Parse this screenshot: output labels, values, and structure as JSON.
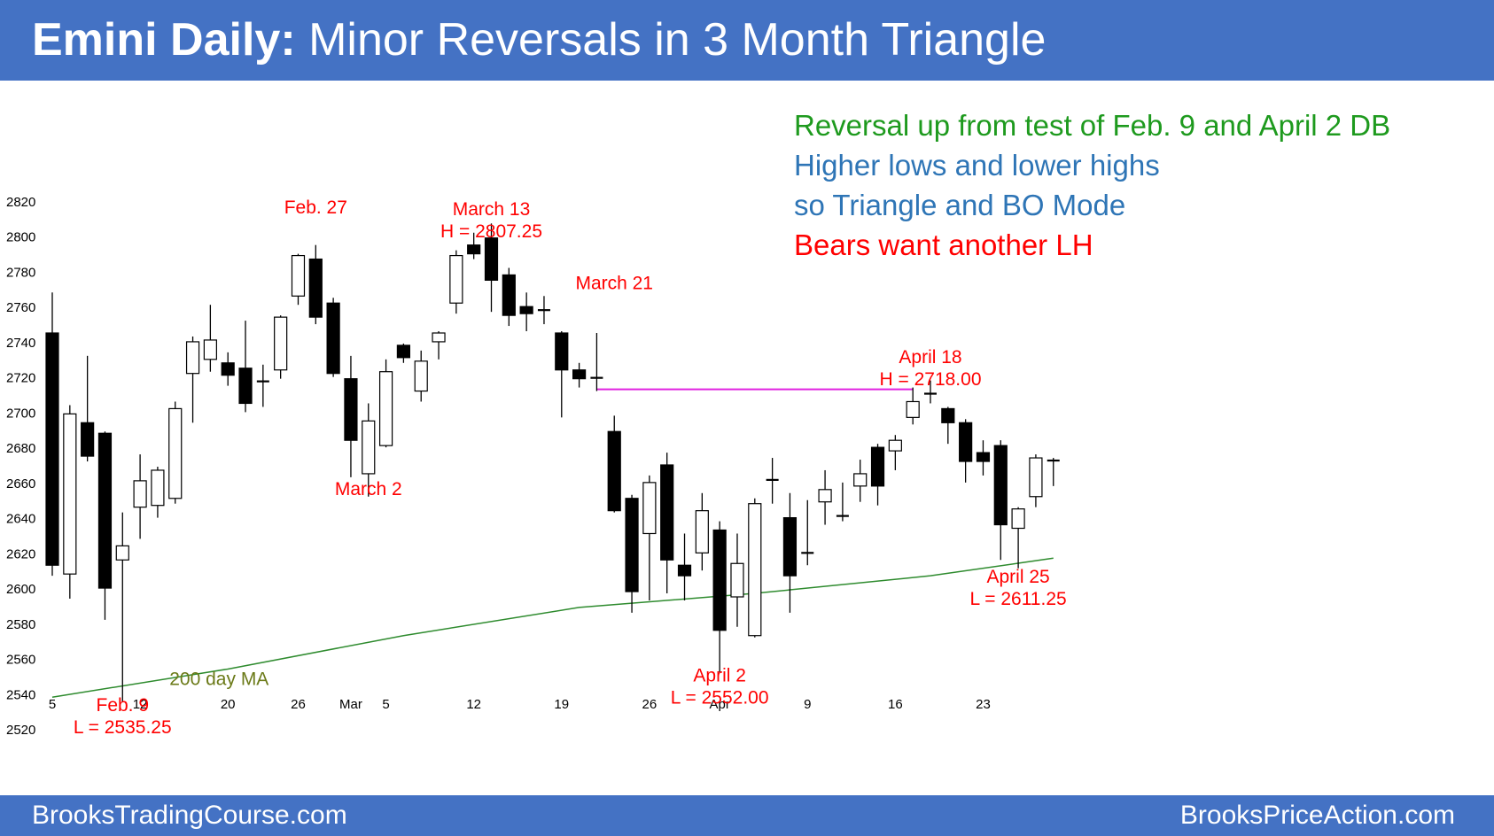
{
  "header": {
    "title_bold": "Emini Daily:",
    "title_rest": "Minor Reversals in 3 Month Triangle",
    "bg_color": "#4472c4"
  },
  "footer": {
    "left": "BrooksTradingCourse.com",
    "right": "BrooksPriceAction.com"
  },
  "notes": [
    {
      "text": "Reversal up from test of Feb. 9 and April 2 DB",
      "color": "#1e9a1e"
    },
    {
      "text": "Higher lows and lower highs",
      "color": "#2e75b6"
    },
    {
      "text": "so Triangle and BO Mode",
      "color": "#2e75b6"
    },
    {
      "text": "Bears want another LH",
      "color": "#ff0000"
    }
  ],
  "chart_data": {
    "type": "candlestick",
    "ylim": [
      2510,
      2830
    ],
    "y_ticks": [
      2520,
      2540,
      2560,
      2580,
      2600,
      2620,
      2640,
      2660,
      2680,
      2700,
      2720,
      2740,
      2760,
      2780,
      2800,
      2820
    ],
    "x_tick_labels": [
      {
        "label": "5",
        "bar": 0
      },
      {
        "label": "12",
        "bar": 5
      },
      {
        "label": "20",
        "bar": 10
      },
      {
        "label": "26",
        "bar": 14
      },
      {
        "label": "Mar",
        "bar": 17
      },
      {
        "label": "5",
        "bar": 19
      },
      {
        "label": "12",
        "bar": 24
      },
      {
        "label": "19",
        "bar": 29
      },
      {
        "label": "26",
        "bar": 34
      },
      {
        "label": "Apr",
        "bar": 38
      },
      {
        "label": "9",
        "bar": 43
      },
      {
        "label": "16",
        "bar": 48
      },
      {
        "label": "23",
        "bar": 53
      }
    ],
    "candles": [
      {
        "o": 2745,
        "h": 2768,
        "l": 2607,
        "c": 2613
      },
      {
        "o": 2608,
        "h": 2704,
        "l": 2594,
        "c": 2699
      },
      {
        "o": 2694,
        "h": 2732,
        "l": 2672,
        "c": 2675
      },
      {
        "o": 2688,
        "h": 2689,
        "l": 2582,
        "c": 2600
      },
      {
        "o": 2616,
        "h": 2643,
        "l": 2535.25,
        "c": 2624
      },
      {
        "o": 2646,
        "h": 2676,
        "l": 2628,
        "c": 2661
      },
      {
        "o": 2647,
        "h": 2669,
        "l": 2640,
        "c": 2667
      },
      {
        "o": 2651,
        "h": 2706,
        "l": 2648,
        "c": 2702
      },
      {
        "o": 2722,
        "h": 2743,
        "l": 2694,
        "c": 2740
      },
      {
        "o": 2730,
        "h": 2761,
        "l": 2723,
        "c": 2741
      },
      {
        "o": 2728,
        "h": 2734,
        "l": 2715,
        "c": 2721
      },
      {
        "o": 2725,
        "h": 2752,
        "l": 2700,
        "c": 2705
      },
      {
        "o": 2718,
        "h": 2727,
        "l": 2703,
        "c": 2717
      },
      {
        "o": 2724,
        "h": 2755,
        "l": 2719,
        "c": 2754
      },
      {
        "o": 2766,
        "h": 2790,
        "l": 2761,
        "c": 2789
      },
      {
        "o": 2787,
        "h": 2795,
        "l": 2750,
        "c": 2754
      },
      {
        "o": 2762,
        "h": 2765,
        "l": 2720,
        "c": 2722
      },
      {
        "o": 2719,
        "h": 2732,
        "l": 2663,
        "c": 2684
      },
      {
        "o": 2665,
        "h": 2705,
        "l": 2652,
        "c": 2695
      },
      {
        "o": 2681,
        "h": 2730,
        "l": 2680,
        "c": 2723
      },
      {
        "o": 2738,
        "h": 2739,
        "l": 2728,
        "c": 2731
      },
      {
        "o": 2712,
        "h": 2735,
        "l": 2706,
        "c": 2729
      },
      {
        "o": 2740,
        "h": 2746,
        "l": 2730,
        "c": 2745
      },
      {
        "o": 2762,
        "h": 2792,
        "l": 2756,
        "c": 2789
      },
      {
        "o": 2795,
        "h": 2802,
        "l": 2787,
        "c": 2790
      },
      {
        "o": 2799,
        "h": 2807.25,
        "l": 2757,
        "c": 2775
      },
      {
        "o": 2778,
        "h": 2782,
        "l": 2749,
        "c": 2755
      },
      {
        "o": 2760,
        "h": 2768,
        "l": 2746,
        "c": 2756
      },
      {
        "o": 2758,
        "h": 2766,
        "l": 2750,
        "c": 2758
      },
      {
        "o": 2745,
        "h": 2746,
        "l": 2697,
        "c": 2724
      },
      {
        "o": 2724,
        "h": 2728,
        "l": 2714,
        "c": 2719
      },
      {
        "o": 2720,
        "h": 2745,
        "l": 2712,
        "c": 2719
      },
      {
        "o": 2689,
        "h": 2698,
        "l": 2643,
        "c": 2644
      },
      {
        "o": 2651,
        "h": 2653,
        "l": 2586,
        "c": 2598
      },
      {
        "o": 2631,
        "h": 2664,
        "l": 2593,
        "c": 2660
      },
      {
        "o": 2670,
        "h": 2677,
        "l": 2597,
        "c": 2616
      },
      {
        "o": 2613,
        "h": 2631,
        "l": 2593,
        "c": 2607
      },
      {
        "o": 2620,
        "h": 2654,
        "l": 2610,
        "c": 2644
      },
      {
        "o": 2633,
        "h": 2638,
        "l": 2552,
        "c": 2576
      },
      {
        "o": 2595,
        "h": 2631,
        "l": 2578,
        "c": 2614
      },
      {
        "o": 2573,
        "h": 2651,
        "l": 2572,
        "c": 2648
      },
      {
        "o": 2662,
        "h": 2674,
        "l": 2648,
        "c": 2661
      },
      {
        "o": 2640,
        "h": 2654,
        "l": 2586,
        "c": 2607
      },
      {
        "o": 2620,
        "h": 2650,
        "l": 2613,
        "c": 2620
      },
      {
        "o": 2649,
        "h": 2667,
        "l": 2636,
        "c": 2656
      },
      {
        "o": 2641,
        "h": 2660,
        "l": 2638,
        "c": 2641
      },
      {
        "o": 2658,
        "h": 2673,
        "l": 2649,
        "c": 2665
      },
      {
        "o": 2680,
        "h": 2682,
        "l": 2647,
        "c": 2658
      },
      {
        "o": 2678,
        "h": 2687,
        "l": 2667,
        "c": 2684
      },
      {
        "o": 2697,
        "h": 2714,
        "l": 2693,
        "c": 2706
      },
      {
        "o": 2711,
        "h": 2718,
        "l": 2705,
        "c": 2710
      },
      {
        "o": 2702,
        "h": 2703,
        "l": 2682,
        "c": 2694
      },
      {
        "o": 2694,
        "h": 2696,
        "l": 2660,
        "c": 2672
      },
      {
        "o": 2677,
        "h": 2684,
        "l": 2664,
        "c": 2672
      },
      {
        "o": 2681,
        "h": 2684,
        "l": 2616,
        "c": 2636
      },
      {
        "o": 2634,
        "h": 2646,
        "l": 2611.25,
        "c": 2645
      },
      {
        "o": 2652,
        "h": 2676,
        "l": 2646,
        "c": 2674
      },
      {
        "o": 2672,
        "h": 2674,
        "l": 2658,
        "c": 2673
      }
    ],
    "moving_average": {
      "label": "200 day MA",
      "color": "#2e8b2e",
      "label_color": "#6b7a18",
      "points": [
        [
          0,
          2538
        ],
        [
          10,
          2554
        ],
        [
          20,
          2573
        ],
        [
          30,
          2589
        ],
        [
          40,
          2597
        ],
        [
          50,
          2607
        ],
        [
          57,
          2617
        ]
      ]
    },
    "reference_line": {
      "value": 2713,
      "from_bar": 31,
      "to_bar": 49,
      "color": "#e020e0"
    },
    "annotations": [
      {
        "lines": [
          "Feb. 9",
          "L = 2535.25"
        ],
        "bar": 4,
        "price": 2530,
        "color": "#ff0000"
      },
      {
        "lines": [
          "Feb. 27"
        ],
        "bar": 15,
        "price": 2813,
        "color": "#ff0000"
      },
      {
        "lines": [
          "March 2"
        ],
        "bar": 18,
        "price": 2653,
        "color": "#ff0000"
      },
      {
        "lines": [
          "March 13",
          "H = 2807.25"
        ],
        "bar": 25,
        "price": 2812,
        "color": "#ff0000"
      },
      {
        "lines": [
          "March 21"
        ],
        "bar": 32,
        "price": 2770,
        "color": "#ff0000"
      },
      {
        "lines": [
          "April 2",
          "L = 2552.00"
        ],
        "bar": 38,
        "price": 2547,
        "color": "#ff0000"
      },
      {
        "lines": [
          "April 18",
          "H = 2718.00"
        ],
        "bar": 50,
        "price": 2728,
        "color": "#ff0000"
      },
      {
        "lines": [
          "April 25",
          "L = 2611.25"
        ],
        "bar": 55,
        "price": 2603,
        "color": "#ff0000"
      }
    ]
  }
}
